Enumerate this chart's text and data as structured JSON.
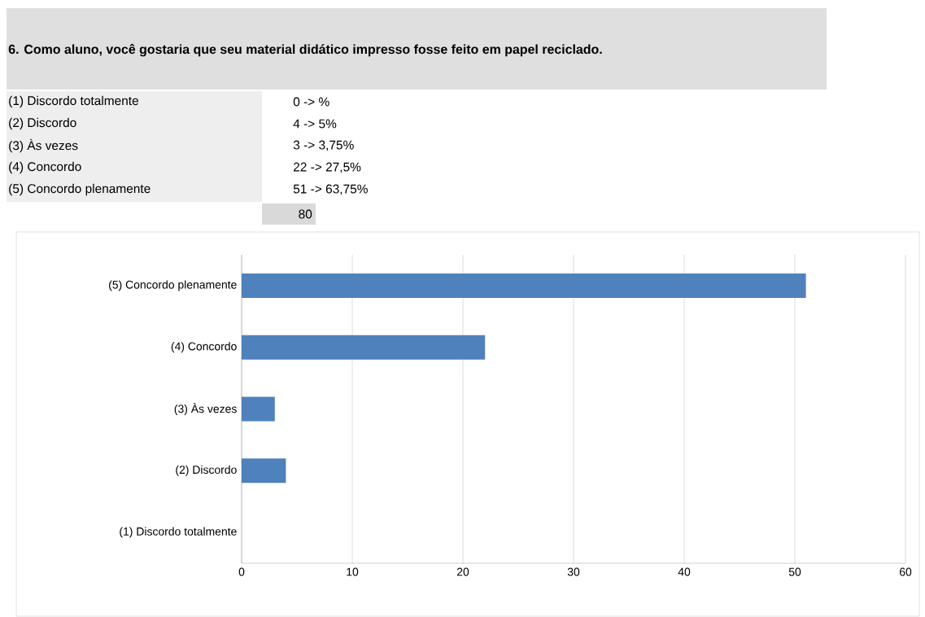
{
  "chart_data": {
    "type": "bar",
    "orientation": "horizontal",
    "title": "6. Como aluno, você gostaria que seu material didático impresso fosse feito em papel reciclado.",
    "categories": [
      "(5) Concordo plenamente",
      "(4) Concordo",
      "(3) Às vezes",
      "(2) Discordo",
      "(1) Discordo totalmente"
    ],
    "values": [
      51,
      22,
      3,
      4,
      0
    ],
    "color": "#4f81bd",
    "xlim": [
      0,
      60
    ],
    "xticks": [
      0,
      10,
      20,
      30,
      40,
      50,
      60
    ],
    "grid": "x",
    "annotations": [
      "(1) Discordo totalmente",
      "(2) Discordo",
      "(3) Às vezes",
      "(4) Concordo",
      "(5) Concordo plenamente",
      "0 -> %",
      "4 -> 5%",
      "3 -> 3,75%",
      "22 -> 27,5%",
      "51 -> 63,75%",
      "80"
    ]
  }
}
